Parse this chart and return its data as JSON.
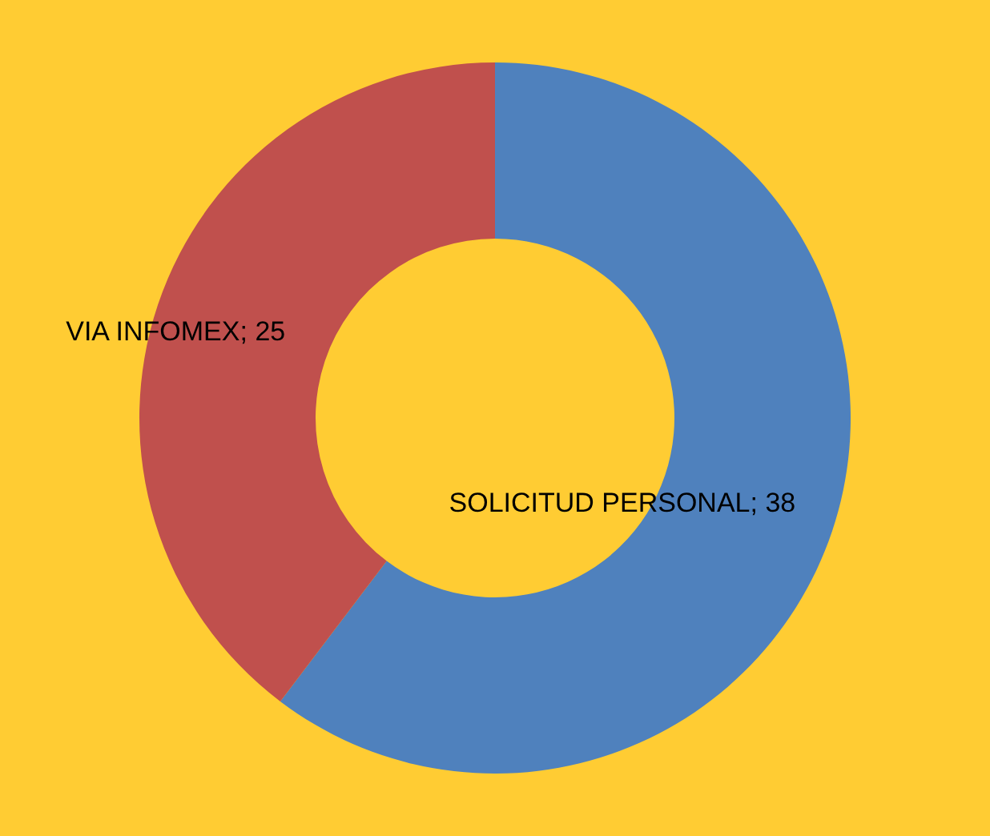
{
  "chart_data": {
    "type": "donut",
    "categories": [
      "SOLICITUD PERSONAL",
      "VIA INFOMEX"
    ],
    "values": [
      38,
      25
    ],
    "colors": [
      "#4f81bd",
      "#c0504d"
    ],
    "value_labels": [
      "; 38",
      "; 25"
    ],
    "legend": false
  }
}
